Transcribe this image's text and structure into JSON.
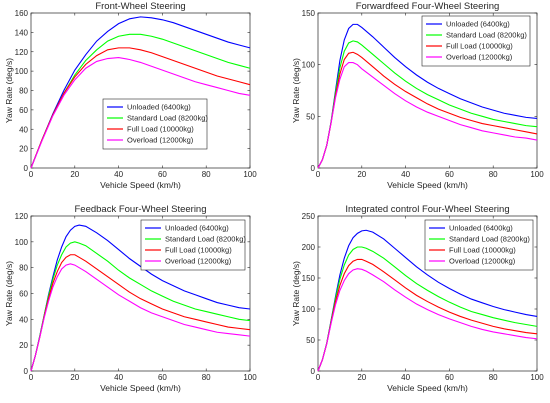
{
  "chart_data": [
    {
      "type": "line",
      "title": "Front-Wheel Steering",
      "xlabel": "Vehicle Speed (km/h)",
      "ylabel": "Yaw Rate (deg/s)",
      "xlim": [
        0,
        100
      ],
      "ylim": [
        0,
        160
      ],
      "xticks": [
        "0",
        "20",
        "40",
        "60",
        "80",
        "100"
      ],
      "yticks": [
        "0",
        "20",
        "40",
        "60",
        "80",
        "100",
        "120",
        "140",
        "160"
      ],
      "grid": false,
      "legend": "center-right",
      "series": [
        {
          "name": "Unloaded (6400kg)",
          "color": "#0000ff",
          "x": [
            0,
            5,
            10,
            15,
            20,
            25,
            30,
            35,
            40,
            45,
            50,
            55,
            60,
            65,
            70,
            75,
            80,
            85,
            90,
            95,
            100
          ],
          "y": [
            0,
            29,
            56,
            80,
            101,
            117,
            131,
            141,
            149,
            154,
            156,
            155,
            153,
            150,
            146,
            142,
            138,
            134,
            130,
            127,
            124
          ]
        },
        {
          "name": "Standard Load (8200kg)",
          "color": "#00ff00",
          "x": [
            0,
            5,
            10,
            15,
            20,
            25,
            30,
            35,
            40,
            45,
            50,
            55,
            60,
            65,
            70,
            75,
            80,
            85,
            90,
            95,
            100
          ],
          "y": [
            0,
            29,
            55,
            77,
            96,
            111,
            122,
            131,
            136,
            138,
            138,
            136,
            133,
            129,
            125,
            121,
            117,
            113,
            109,
            106,
            103
          ]
        },
        {
          "name": "Full Load (10000kg)",
          "color": "#ff0000",
          "x": [
            0,
            5,
            10,
            15,
            20,
            25,
            30,
            35,
            40,
            45,
            50,
            55,
            60,
            65,
            70,
            75,
            80,
            85,
            90,
            95,
            100
          ],
          "y": [
            0,
            29,
            55,
            77,
            94,
            107,
            116,
            122,
            124,
            124,
            122,
            119,
            115,
            111,
            107,
            103,
            99,
            95,
            92,
            89,
            86
          ]
        },
        {
          "name": "Overload (12000kg)",
          "color": "#ff00ff",
          "x": [
            0,
            5,
            10,
            15,
            20,
            25,
            30,
            35,
            40,
            45,
            50,
            55,
            60,
            65,
            70,
            75,
            80,
            85,
            90,
            95,
            100
          ],
          "y": [
            0,
            28,
            54,
            75,
            91,
            103,
            110,
            113,
            114,
            112,
            109,
            105,
            101,
            97,
            93,
            89,
            86,
            83,
            80,
            77,
            75
          ]
        }
      ]
    },
    {
      "type": "line",
      "title": "Forwardfeed Four-Wheel Steering",
      "xlabel": "Vehicle Speed (km/h)",
      "ylabel": "Yaw Rate (deg/s)",
      "xlim": [
        0,
        100
      ],
      "ylim": [
        0,
        150
      ],
      "xticks": [
        "0",
        "20",
        "40",
        "60",
        "80",
        "100"
      ],
      "yticks": [
        "0",
        "50",
        "100",
        "150"
      ],
      "grid": false,
      "legend": "top-right",
      "series": [
        {
          "name": "Unloaded (6400kg)",
          "color": "#0000ff",
          "x": [
            0,
            2,
            4,
            6,
            8,
            10,
            12,
            14,
            16,
            18,
            20,
            25,
            30,
            35,
            40,
            45,
            50,
            55,
            60,
            65,
            70,
            75,
            80,
            85,
            90,
            95,
            100
          ],
          "y": [
            0,
            8,
            22,
            45,
            75,
            104,
            124,
            135,
            139,
            139,
            136,
            127,
            117,
            107,
            98,
            90,
            83,
            77,
            72,
            67,
            63,
            59,
            56,
            53,
            51,
            49,
            48
          ]
        },
        {
          "name": "Standard Load (8200kg)",
          "color": "#00ff00",
          "x": [
            0,
            2,
            4,
            6,
            8,
            10,
            12,
            14,
            16,
            18,
            20,
            25,
            30,
            35,
            40,
            45,
            50,
            55,
            60,
            65,
            70,
            75,
            80,
            85,
            90,
            95,
            100
          ],
          "y": [
            0,
            8,
            22,
            45,
            73,
            97,
            113,
            121,
            123,
            122,
            119,
            110,
            101,
            92,
            84,
            77,
            71,
            66,
            61,
            57,
            53,
            50,
            47,
            45,
            43,
            41,
            40
          ]
        },
        {
          "name": "Full Load (10000kg)",
          "color": "#ff0000",
          "x": [
            0,
            2,
            4,
            6,
            8,
            10,
            12,
            14,
            16,
            18,
            20,
            25,
            30,
            35,
            40,
            45,
            50,
            55,
            60,
            65,
            70,
            75,
            80,
            85,
            90,
            95,
            100
          ],
          "y": [
            0,
            8,
            22,
            44,
            70,
            91,
            105,
            111,
            112,
            110,
            107,
            98,
            89,
            81,
            74,
            68,
            62,
            57,
            53,
            49,
            46,
            43,
            41,
            39,
            37,
            35,
            33
          ]
        },
        {
          "name": "Overload (12000kg)",
          "color": "#ff00ff",
          "x": [
            0,
            2,
            4,
            6,
            8,
            10,
            12,
            14,
            16,
            18,
            20,
            25,
            30,
            35,
            40,
            45,
            50,
            55,
            60,
            65,
            70,
            75,
            80,
            85,
            90,
            95,
            100
          ],
          "y": [
            0,
            8,
            22,
            44,
            68,
            86,
            98,
            102,
            102,
            100,
            96,
            88,
            80,
            72,
            65,
            59,
            54,
            50,
            46,
            42,
            39,
            36,
            34,
            32,
            30,
            29,
            27
          ]
        }
      ]
    },
    {
      "type": "line",
      "title": "Feedback Four-Wheel Steering",
      "xlabel": "Vehicle Speed (km/h)",
      "ylabel": "Yaw Rate (deg/s)",
      "xlim": [
        0,
        100
      ],
      "ylim": [
        0,
        120
      ],
      "xticks": [
        "0",
        "20",
        "40",
        "60",
        "80",
        "100"
      ],
      "yticks": [
        "0",
        "20",
        "40",
        "60",
        "80",
        "100",
        "120"
      ],
      "grid": false,
      "legend": "top-right",
      "series": [
        {
          "name": "Unloaded (6400kg)",
          "color": "#0000ff",
          "x": [
            0,
            2,
            4,
            6,
            8,
            10,
            12,
            14,
            16,
            18,
            20,
            22,
            25,
            30,
            35,
            40,
            45,
            50,
            55,
            60,
            65,
            70,
            75,
            80,
            85,
            90,
            95,
            100
          ],
          "y": [
            0,
            12,
            27,
            43,
            59,
            73,
            86,
            96,
            104,
            109,
            112,
            113,
            112,
            107,
            101,
            94,
            87,
            81,
            75,
            70,
            66,
            62,
            59,
            56,
            53,
            51,
            49,
            48
          ]
        },
        {
          "name": "Standard Load (8200kg)",
          "color": "#00ff00",
          "x": [
            0,
            2,
            4,
            6,
            8,
            10,
            12,
            14,
            16,
            18,
            20,
            22,
            25,
            30,
            35,
            40,
            45,
            50,
            55,
            60,
            65,
            70,
            75,
            80,
            85,
            90,
            95,
            100
          ],
          "y": [
            0,
            12,
            27,
            43,
            58,
            71,
            82,
            90,
            96,
            99,
            100,
            99,
            97,
            91,
            85,
            78,
            72,
            67,
            62,
            58,
            54,
            51,
            48,
            46,
            44,
            42,
            40,
            39
          ]
        },
        {
          "name": "Full Load (10000kg)",
          "color": "#ff0000",
          "x": [
            0,
            2,
            4,
            6,
            8,
            10,
            12,
            14,
            16,
            18,
            20,
            22,
            25,
            30,
            35,
            40,
            45,
            50,
            55,
            60,
            65,
            70,
            75,
            80,
            85,
            90,
            95,
            100
          ],
          "y": [
            0,
            12,
            26,
            42,
            56,
            68,
            77,
            84,
            88,
            90,
            90,
            88,
            85,
            79,
            73,
            67,
            61,
            56,
            52,
            48,
            45,
            42,
            40,
            38,
            36,
            34,
            33,
            32
          ]
        },
        {
          "name": "Overload (12000kg)",
          "color": "#ff00ff",
          "x": [
            0,
            2,
            4,
            6,
            8,
            10,
            12,
            14,
            16,
            18,
            20,
            22,
            25,
            30,
            35,
            40,
            45,
            50,
            55,
            60,
            65,
            70,
            75,
            80,
            85,
            90,
            95,
            100
          ],
          "y": [
            0,
            12,
            26,
            41,
            54,
            65,
            73,
            79,
            82,
            83,
            82,
            80,
            77,
            71,
            65,
            59,
            54,
            49,
            45,
            42,
            39,
            36,
            34,
            32,
            30,
            29,
            28,
            27
          ]
        }
      ]
    },
    {
      "type": "line",
      "title": "Integrated control Four-Wheel Steering",
      "xlabel": "Vehicle Speed (km/h)",
      "ylabel": "Yaw Rate (deg/s)",
      "xlim": [
        0,
        100
      ],
      "ylim": [
        0,
        250
      ],
      "xticks": [
        "0",
        "20",
        "40",
        "60",
        "80",
        "100"
      ],
      "yticks": [
        "0",
        "50",
        "100",
        "150",
        "200",
        "250"
      ],
      "grid": false,
      "legend": "top-right",
      "series": [
        {
          "name": "Unloaded (6400kg)",
          "color": "#0000ff",
          "x": [
            0,
            2,
            4,
            6,
            8,
            10,
            12,
            14,
            16,
            18,
            20,
            22,
            25,
            30,
            35,
            40,
            45,
            50,
            55,
            60,
            65,
            70,
            75,
            80,
            85,
            90,
            95,
            100
          ],
          "y": [
            0,
            18,
            45,
            82,
            120,
            155,
            182,
            202,
            215,
            222,
            226,
            227,
            224,
            213,
            198,
            183,
            168,
            155,
            143,
            133,
            124,
            116,
            110,
            104,
            99,
            95,
            91,
            88
          ]
        },
        {
          "name": "Standard Load (8200kg)",
          "color": "#00ff00",
          "x": [
            0,
            2,
            4,
            6,
            8,
            10,
            12,
            14,
            16,
            18,
            20,
            22,
            25,
            30,
            35,
            40,
            45,
            50,
            55,
            60,
            65,
            70,
            75,
            80,
            85,
            90,
            95,
            100
          ],
          "y": [
            0,
            18,
            45,
            81,
            117,
            148,
            171,
            187,
            196,
            200,
            200,
            198,
            193,
            182,
            168,
            154,
            141,
            130,
            120,
            111,
            103,
            96,
            91,
            86,
            82,
            78,
            75,
            72
          ]
        },
        {
          "name": "Full Load (10000kg)",
          "color": "#ff0000",
          "x": [
            0,
            2,
            4,
            6,
            8,
            10,
            12,
            14,
            16,
            18,
            20,
            22,
            25,
            30,
            35,
            40,
            45,
            50,
            55,
            60,
            65,
            70,
            75,
            80,
            85,
            90,
            95,
            100
          ],
          "y": [
            0,
            18,
            44,
            79,
            112,
            138,
            157,
            170,
            177,
            180,
            180,
            177,
            172,
            160,
            147,
            134,
            122,
            112,
            103,
            95,
            88,
            82,
            77,
            72,
            68,
            65,
            62,
            60
          ]
        },
        {
          "name": "Overload (12000kg)",
          "color": "#ff00ff",
          "x": [
            0,
            2,
            4,
            6,
            8,
            10,
            12,
            14,
            16,
            18,
            20,
            22,
            25,
            30,
            35,
            40,
            45,
            50,
            55,
            60,
            65,
            70,
            75,
            80,
            85,
            90,
            95,
            100
          ],
          "y": [
            0,
            18,
            44,
            77,
            107,
            130,
            146,
            157,
            163,
            165,
            164,
            161,
            155,
            144,
            131,
            119,
            108,
            99,
            91,
            84,
            78,
            72,
            67,
            63,
            60,
            57,
            54,
            52
          ]
        }
      ]
    }
  ]
}
